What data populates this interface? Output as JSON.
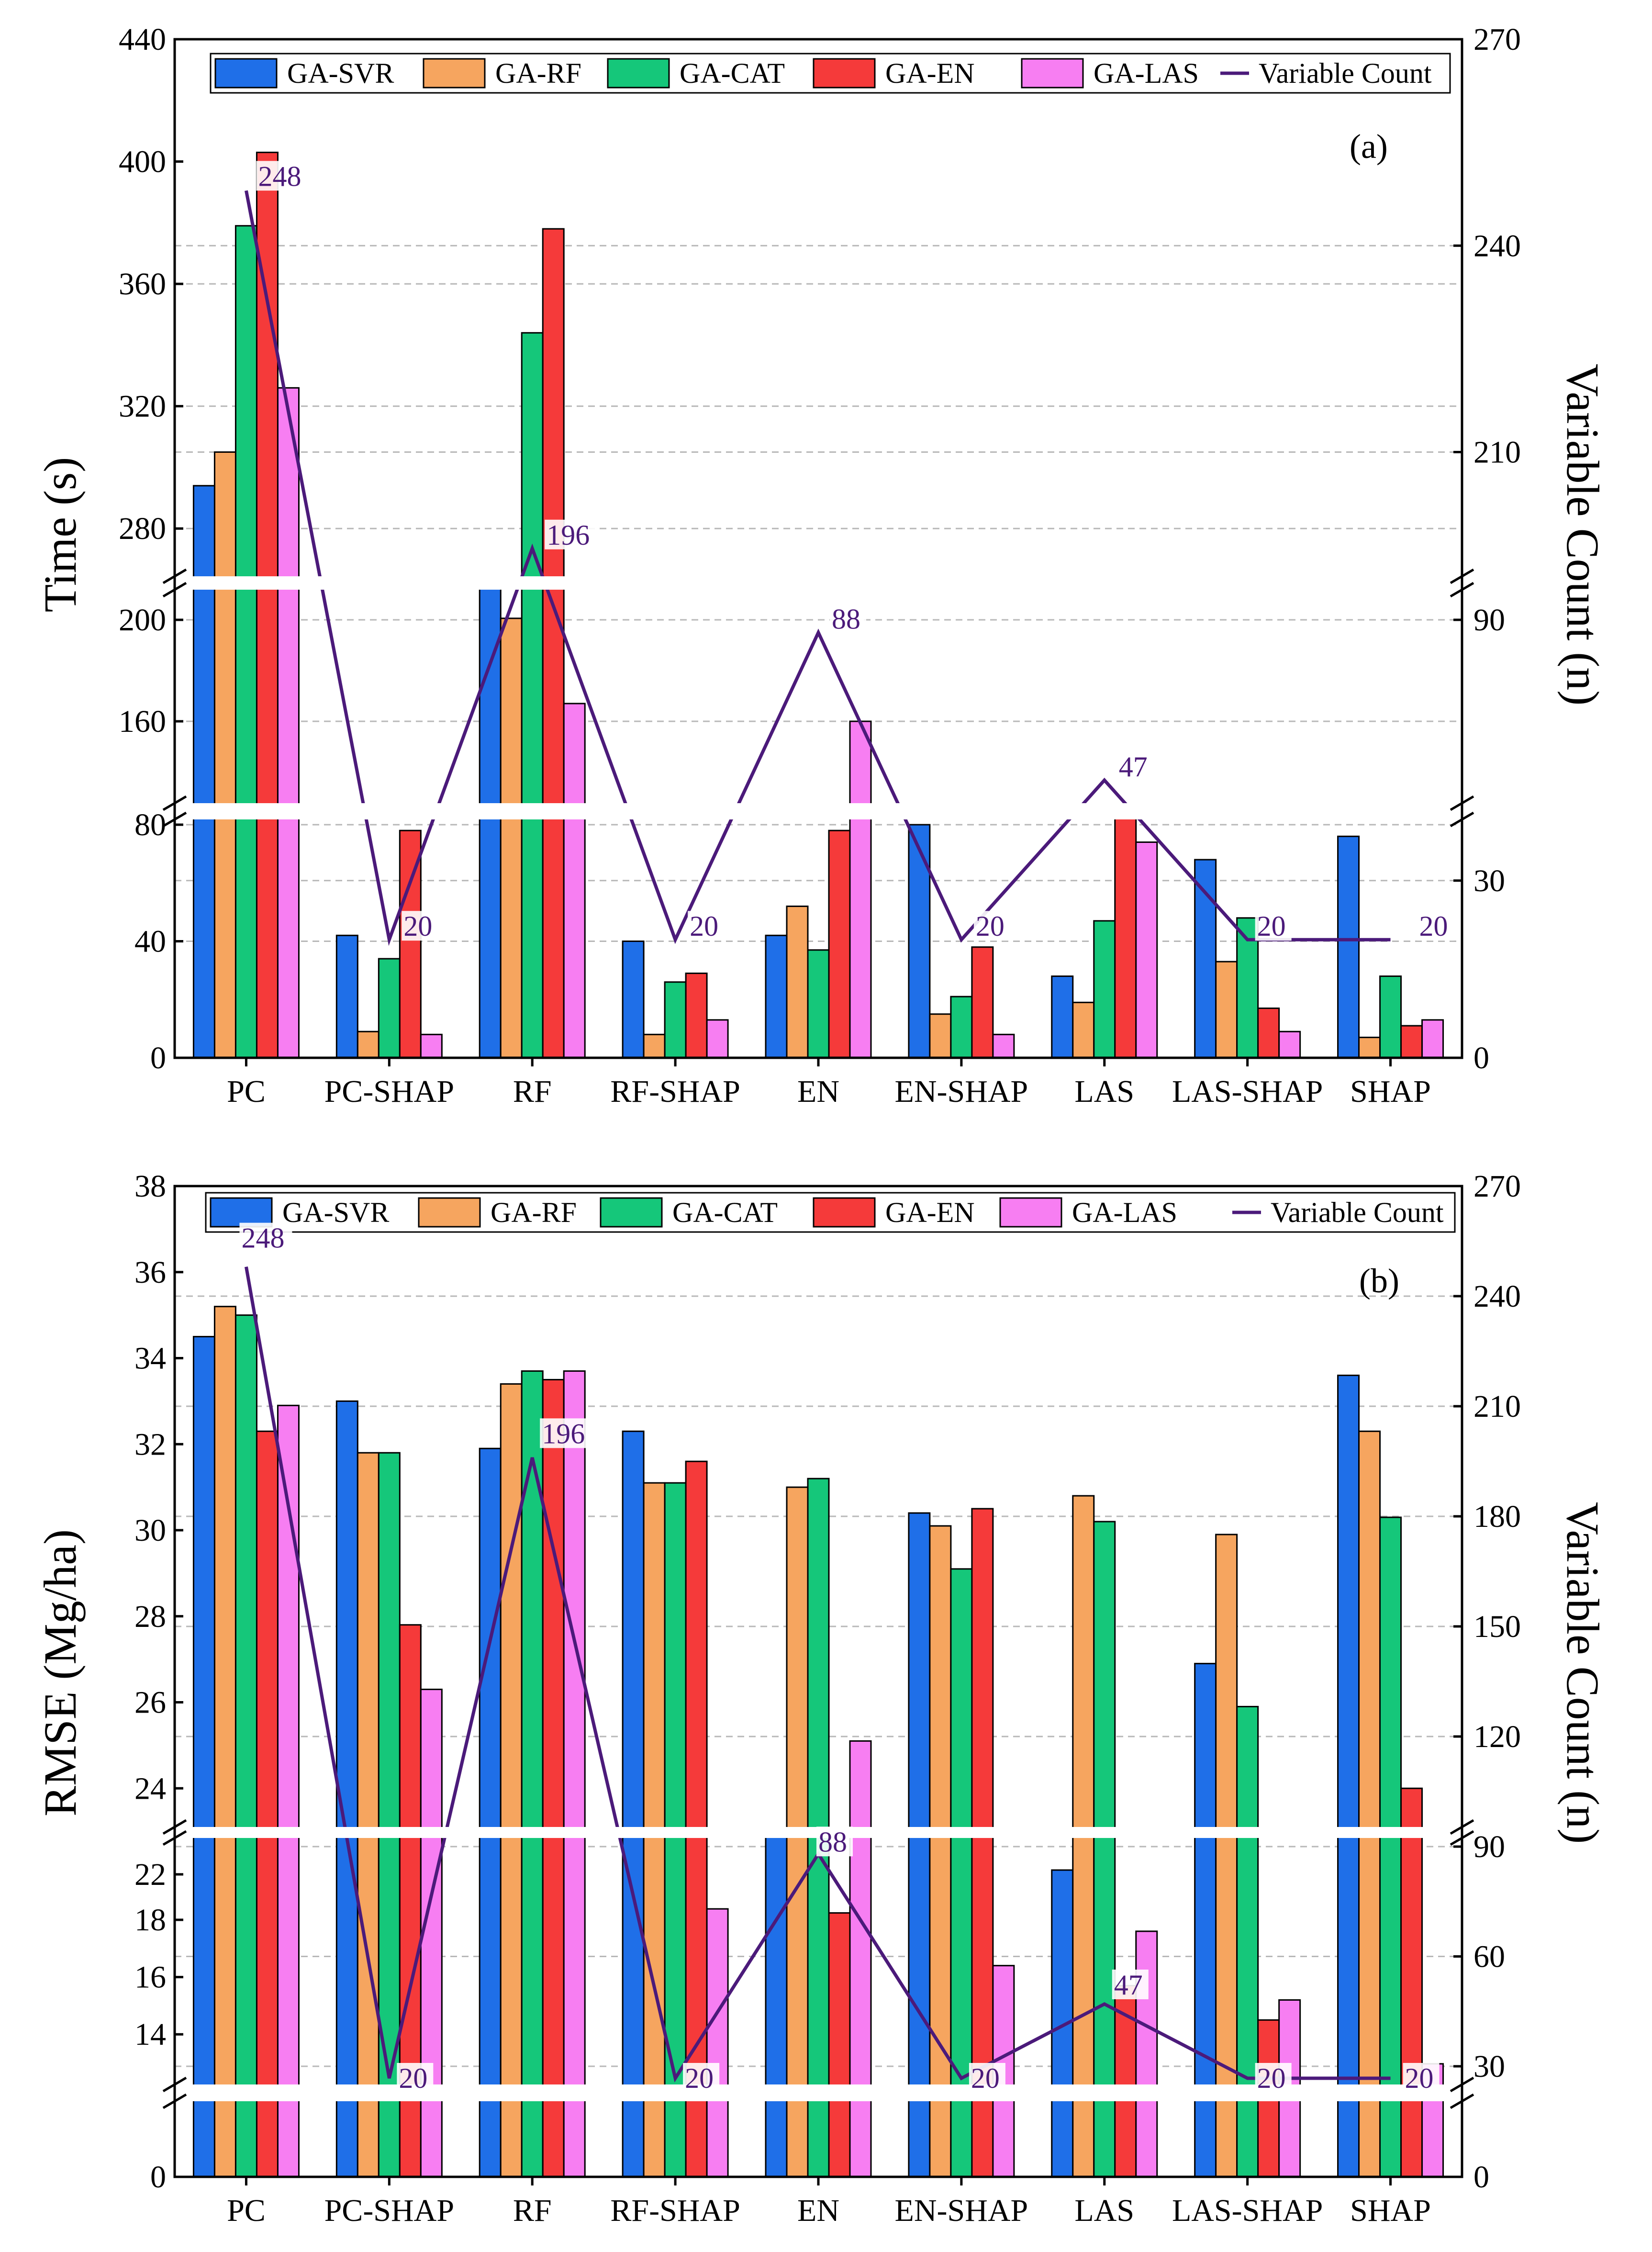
{
  "colors": {
    "GA-SVR": "#1f6fe8",
    "GA-RF": "#f6a55f",
    "GA-CAT": "#15c77a",
    "GA-EN": "#f53a3a",
    "GA-LAS": "#f77ef2",
    "Variable Count": "#4b1a7a"
  },
  "chart_data": [
    {
      "type": "bar",
      "panel_label": "(a)",
      "title": "",
      "xlabel": "",
      "ylabel": "Time (s)",
      "y2label": "Variable Count (n)",
      "categories": [
        "PC",
        "PC-SHAP",
        "RF",
        "RF-SHAP",
        "EN",
        "EN-SHAP",
        "LAS",
        "LAS-SHAP",
        "SHAP"
      ],
      "series": [
        {
          "name": "GA-SVR",
          "values": [
            294,
            42,
            263,
            40,
            42,
            80,
            28,
            68,
            76
          ]
        },
        {
          "name": "GA-RF",
          "values": [
            305,
            9,
            203,
            8,
            52,
            15,
            19,
            33,
            7
          ]
        },
        {
          "name": "GA-CAT",
          "values": [
            379,
            34,
            344,
            26,
            37,
            21,
            47,
            48,
            28
          ]
        },
        {
          "name": "GA-EN",
          "values": [
            403,
            78,
            378,
            29,
            78,
            38,
            87,
            17,
            11
          ]
        },
        {
          "name": "GA-LAS",
          "values": [
            326,
            8,
            167,
            13,
            160,
            8,
            74,
            9,
            13
          ]
        },
        {
          "name": "Variable Count",
          "axis": "right",
          "values": [
            248,
            20,
            196,
            20,
            88,
            20,
            47,
            20,
            20
          ]
        }
      ],
      "ytick_labels": [
        "0",
        "40",
        "80",
        "160",
        "200",
        "280",
        "320",
        "360",
        "400",
        "440"
      ],
      "y2tick_labels": [
        "0",
        "30",
        "90",
        "210",
        "240",
        "270"
      ],
      "ylim": [
        0,
        440
      ],
      "y2lim": [
        0,
        270
      ],
      "legend": "top"
    },
    {
      "type": "bar",
      "panel_label": "(b)",
      "title": "",
      "xlabel": "",
      "ylabel": "RMSE (Mg/ha)",
      "y2label": "Variable Count (n)",
      "categories": [
        "PC",
        "PC-SHAP",
        "RF",
        "RF-SHAP",
        "EN",
        "EN-SHAP",
        "LAS",
        "LAS-SHAP",
        "SHAP"
      ],
      "series": [
        {
          "name": "GA-SVR",
          "values": [
            34.5,
            33.0,
            31.9,
            32.3,
            23.0,
            30.4,
            22.1,
            26.9,
            33.6
          ]
        },
        {
          "name": "GA-RF",
          "values": [
            35.2,
            31.8,
            33.4,
            31.1,
            31.0,
            30.1,
            30.8,
            29.9,
            32.3
          ]
        },
        {
          "name": "GA-CAT",
          "values": [
            35.0,
            31.8,
            33.7,
            31.1,
            31.2,
            29.1,
            30.2,
            25.9,
            30.3
          ]
        },
        {
          "name": "GA-EN",
          "values": [
            32.3,
            27.8,
            33.5,
            31.6,
            18.5,
            30.5,
            15.7,
            14.5,
            24.0
          ]
        },
        {
          "name": "GA-LAS",
          "values": [
            32.9,
            26.3,
            33.7,
            18.9,
            25.1,
            16.4,
            17.6,
            15.2,
            12.9
          ]
        },
        {
          "name": "Variable Count",
          "axis": "right",
          "values": [
            248,
            20,
            196,
            20,
            88,
            20,
            47,
            20,
            20
          ]
        }
      ],
      "ytick_labels": [
        "0",
        "14",
        "16",
        "18",
        "22",
        "24",
        "26",
        "28",
        "30",
        "32",
        "34",
        "36",
        "38"
      ],
      "y2tick_labels": [
        "0",
        "30",
        "60",
        "90",
        "120",
        "150",
        "180",
        "210",
        "240",
        "270"
      ],
      "ylim": [
        0,
        38
      ],
      "y2lim": [
        0,
        270
      ],
      "legend": "top"
    }
  ]
}
